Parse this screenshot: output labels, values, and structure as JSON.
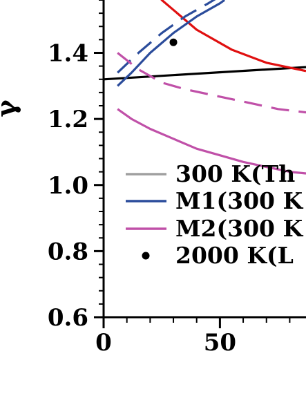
{
  "chart_data": {
    "type": "line",
    "xlabel": "",
    "ylabel": "γ",
    "xlim": [
      0,
      87
    ],
    "ylim": [
      0.6,
      1.56
    ],
    "xticks": [
      0,
      50
    ],
    "yticks": [
      0.6,
      0.8,
      1.0,
      1.2,
      1.4
    ],
    "ytick_labels": [
      "0.6",
      "0.8",
      "1.0",
      "1.2",
      "1.4"
    ],
    "xtick_labels": [
      "0",
      "50"
    ],
    "legend": {
      "placement": "lower-right",
      "entries": [
        {
          "label": "300 K(Th",
          "color": "#a0a0a0",
          "marker": "line"
        },
        {
          "label": "M1(300 K",
          "color": "#2b4c9b",
          "marker": "line"
        },
        {
          "label": "M2(300 K",
          "color": "#c050a8",
          "marker": "line"
        },
        {
          "label": "2000 K(L",
          "color": "#000000",
          "marker": "dot"
        }
      ]
    },
    "series": [
      {
        "color": "#000000",
        "style": "solid",
        "x": [
          0,
          87
        ],
        "y": [
          1.32,
          1.357
        ]
      },
      {
        "color": "#e01010",
        "style": "solid",
        "x": [
          13,
          25,
          40,
          55,
          70,
          87
        ],
        "y": [
          1.68,
          1.56,
          1.47,
          1.41,
          1.37,
          1.345
        ]
      },
      {
        "color": "#2b4c9b",
        "style": "solid",
        "x": [
          6,
          12,
          20,
          30,
          40,
          50,
          52
        ],
        "y": [
          1.3,
          1.34,
          1.4,
          1.46,
          1.51,
          1.55,
          1.56
        ]
      },
      {
        "color": "#2b4c9b",
        "style": "dashed",
        "x": [
          6,
          15,
          25,
          35,
          45,
          52
        ],
        "y": [
          1.34,
          1.4,
          1.46,
          1.51,
          1.55,
          1.58
        ]
      },
      {
        "color": "#c050a8",
        "style": "solid",
        "x": [
          6,
          12,
          20,
          30,
          40,
          50,
          60,
          70,
          80,
          87
        ],
        "y": [
          1.23,
          1.2,
          1.17,
          1.14,
          1.11,
          1.09,
          1.07,
          1.055,
          1.04,
          1.035
        ]
      },
      {
        "color": "#c050a8",
        "style": "dashed",
        "x": [
          6,
          15,
          25,
          35,
          45,
          55,
          65,
          75,
          87
        ],
        "y": [
          1.4,
          1.35,
          1.31,
          1.29,
          1.275,
          1.26,
          1.245,
          1.23,
          1.22
        ]
      }
    ],
    "points": [
      {
        "color": "#000000",
        "x": 30,
        "y": 1.432
      }
    ]
  }
}
